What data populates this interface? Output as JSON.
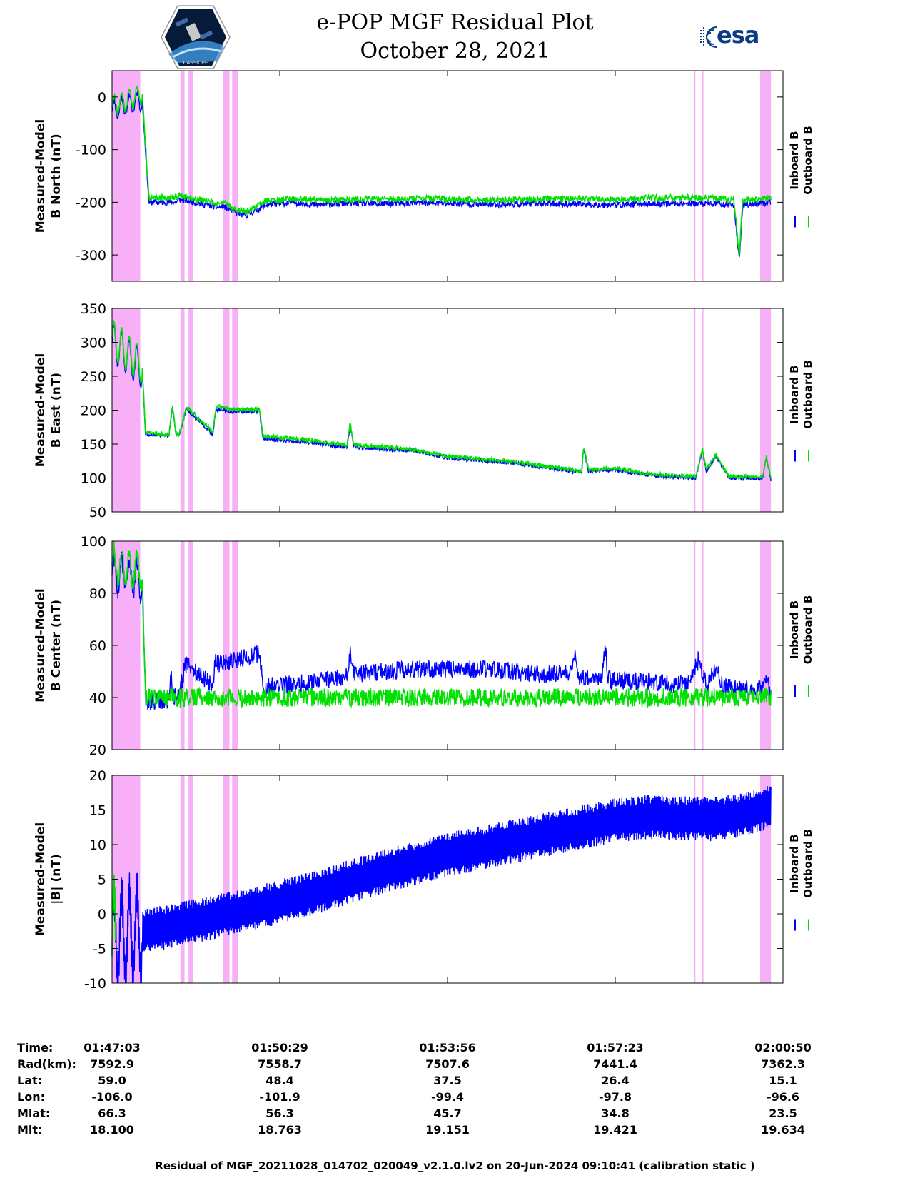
{
  "header": {
    "title_line1": "e-POP MGF Residual Plot",
    "title_line2": "October 28, 2021",
    "logo_left": "CASSIOPE",
    "logo_right": "esa"
  },
  "colors": {
    "inboard": "#0000ff",
    "outboard": "#00e000",
    "shade": "#f7b0f7"
  },
  "chart_data": [
    {
      "type": "line",
      "ylabel": [
        "Measured-Model",
        "B North (nT)"
      ],
      "ylim": [
        -350,
        50
      ],
      "yticks": [
        0,
        -100,
        -200,
        -300
      ],
      "legend": [
        "Inboard B",
        "Outboard B"
      ],
      "series": [
        {
          "name": "Inboard B",
          "x": [
            0,
            4.5,
            5.5,
            9.5,
            10,
            12,
            14,
            16,
            16.5,
            18.5,
            20,
            23,
            27,
            30,
            35,
            40,
            46,
            52,
            58,
            64,
            70,
            75,
            80,
            85,
            90,
            92.7,
            93.5,
            94,
            98.2
          ],
          "values": [
            -25,
            -5,
            -200,
            -200,
            -195,
            -199,
            -205,
            -210,
            -207,
            -220,
            -225,
            -205,
            -200,
            -205,
            -202,
            -203,
            -201,
            -203,
            -204,
            -202,
            -204,
            -205,
            -203,
            -202,
            -203,
            -205,
            -310,
            -205,
            -200
          ]
        },
        {
          "name": "Outboard B",
          "x": [
            0,
            4.5,
            5.5,
            9.5,
            10,
            12,
            14,
            16,
            16.5,
            18.5,
            20,
            23,
            27,
            30,
            35,
            40,
            46,
            52,
            58,
            64,
            70,
            75,
            80,
            85,
            90,
            92.7,
            93.5,
            94,
            98.2
          ],
          "values": [
            -18,
            5,
            -192,
            -190,
            -188,
            -192,
            -198,
            -203,
            -200,
            -213,
            -218,
            -197,
            -193,
            -196,
            -195,
            -194,
            -193,
            -195,
            -196,
            -194,
            -193,
            -195,
            -192,
            -191,
            -192,
            -196,
            -300,
            -196,
            -192
          ]
        }
      ]
    },
    {
      "type": "line",
      "ylabel": [
        "Measured-Model",
        "B East (nT)"
      ],
      "ylim": [
        50,
        350
      ],
      "yticks": [
        350,
        300,
        250,
        200,
        150,
        100,
        50
      ],
      "legend": [
        "Inboard B",
        "Outboard B"
      ],
      "series": [
        {
          "name": "Inboard B",
          "x": [
            0,
            4.5,
            5,
            8.5,
            9,
            9.5,
            10,
            11,
            11.5,
            15,
            15.5,
            16,
            17,
            17.5,
            22,
            22.5,
            30,
            35,
            35.5,
            36,
            45,
            50,
            60,
            70,
            70.3,
            71,
            75,
            80,
            87,
            88,
            88.6,
            90,
            92,
            95,
            97,
            97.5,
            98.2
          ],
          "values": [
            300,
            260,
            165,
            162,
            205,
            165,
            162,
            200,
            198,
            165,
            200,
            202,
            200,
            198,
            198,
            158,
            152,
            145,
            180,
            146,
            140,
            130,
            122,
            108,
            145,
            110,
            112,
            104,
            100,
            140,
            110,
            132,
            100,
            100,
            100,
            130,
            98
          ]
        },
        {
          "name": "Outboard B",
          "x": [
            0,
            4.5,
            5,
            8.5,
            9,
            9.5,
            10,
            11,
            11.5,
            15,
            15.5,
            16,
            17,
            17.5,
            22,
            22.5,
            30,
            35,
            35.5,
            36,
            45,
            50,
            60,
            70,
            70.3,
            71,
            75,
            80,
            87,
            88,
            88.6,
            90,
            92,
            95,
            97,
            97.5,
            98.2
          ],
          "values": [
            305,
            265,
            167,
            164,
            207,
            167,
            164,
            203,
            201,
            168,
            203,
            205,
            203,
            201,
            201,
            162,
            155,
            148,
            183,
            149,
            142,
            132,
            124,
            110,
            147,
            112,
            114,
            106,
            102,
            142,
            112,
            134,
            102,
            102,
            102,
            132,
            100
          ]
        }
      ]
    },
    {
      "type": "line",
      "ylabel": [
        "Measured-Model",
        "B Center (nT)"
      ],
      "ylim": [
        20,
        100
      ],
      "yticks": [
        100,
        80,
        60,
        40,
        20
      ],
      "legend": [
        "Inboard B",
        "Outboard B"
      ],
      "series": [
        {
          "name": "Inboard B",
          "x": [
            0,
            4.5,
            5,
            8.5,
            8.8,
            9.2,
            10,
            11,
            11.5,
            15,
            15.5,
            16,
            21,
            22,
            22.5,
            30,
            35,
            35.5,
            36,
            45,
            55,
            65,
            68.5,
            69,
            69.5,
            73,
            73.5,
            74,
            86,
            87.5,
            88.6,
            90,
            91,
            97,
            97.5,
            98.2
          ],
          "values": [
            88,
            85,
            38,
            39,
            50,
            40,
            42,
            53,
            52,
            45,
            55,
            53,
            56,
            57,
            44,
            46,
            48,
            58,
            49,
            51,
            51,
            49,
            49,
            59,
            48,
            47,
            59,
            47,
            45,
            55,
            44,
            52,
            44,
            43,
            50,
            40
          ]
        },
        {
          "name": "Outboard B",
          "x": [
            0,
            4.5,
            5,
            98.2
          ],
          "values": [
            91,
            88,
            40,
            40
          ]
        }
      ]
    },
    {
      "type": "line",
      "ylabel": [
        "Measured-Model",
        "|B| (nT)"
      ],
      "ylim": [
        -10,
        20
      ],
      "yticks": [
        20,
        15,
        10,
        5,
        0,
        -5,
        -10
      ],
      "legend": [
        "Inboard B",
        "Outboard B"
      ],
      "series": [
        {
          "name": "Inboard B",
          "x": [
            0,
            10,
            20,
            30,
            40,
            50,
            60,
            70,
            75,
            80,
            85,
            90,
            95,
            98.2
          ],
          "values": [
            -3.5,
            -1.5,
            0.5,
            3,
            6,
            8.5,
            10.5,
            12.5,
            13.5,
            14,
            13.8,
            13.7,
            14.5,
            15.5
          ]
        },
        {
          "name": "Outboard B",
          "x": [
            0,
            0.5
          ],
          "values": [
            -3,
            -3
          ]
        }
      ]
    }
  ],
  "shaded_regions": [
    [
      0,
      4.2
    ],
    [
      10.2,
      10.8
    ],
    [
      11.4,
      12.1
    ],
    [
      16.6,
      17.5
    ],
    [
      17.9,
      18.8
    ],
    [
      86.7,
      86.95
    ],
    [
      87.9,
      88.15
    ],
    [
      96.6,
      98.2
    ]
  ],
  "x_time_ticks": [
    "01:47:03",
    "01:50:29",
    "01:53:56",
    "01:57:23",
    "02:00:50"
  ],
  "footer": {
    "labels": [
      "Time:",
      "Rad(km):",
      "Lat:",
      "Lon:",
      "Mlat:",
      "Mlt:"
    ],
    "columns": [
      [
        "01:47:03",
        "7592.9",
        "59.0",
        "-106.0",
        "66.3",
        "18.100"
      ],
      [
        "01:50:29",
        "7558.7",
        "48.4",
        "-101.9",
        "56.3",
        "18.763"
      ],
      [
        "01:53:56",
        "7507.6",
        "37.5",
        "-99.4",
        "45.7",
        "19.151"
      ],
      [
        "01:57:23",
        "7441.4",
        "26.4",
        "-97.8",
        "34.8",
        "19.421"
      ],
      [
        "02:00:50",
        "7362.3",
        "15.1",
        "-96.6",
        "23.5",
        "19.634"
      ]
    ],
    "caption": "Residual of MGF_20211028_014702_020049_v2.1.0.lv2 on 20-Jun-2024 09:10:41 (calibration static )"
  }
}
